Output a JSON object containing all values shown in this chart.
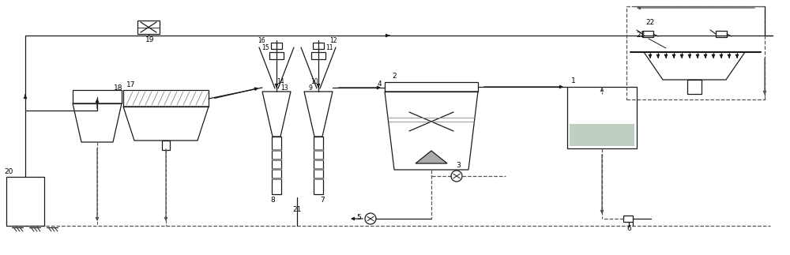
{
  "bg": "#ffffff",
  "lc": "#1a1a1a",
  "gc": "#888888",
  "dc": "#555555",
  "fill_water": "#c0d0c0",
  "fill_sand": "#aaaaaa"
}
